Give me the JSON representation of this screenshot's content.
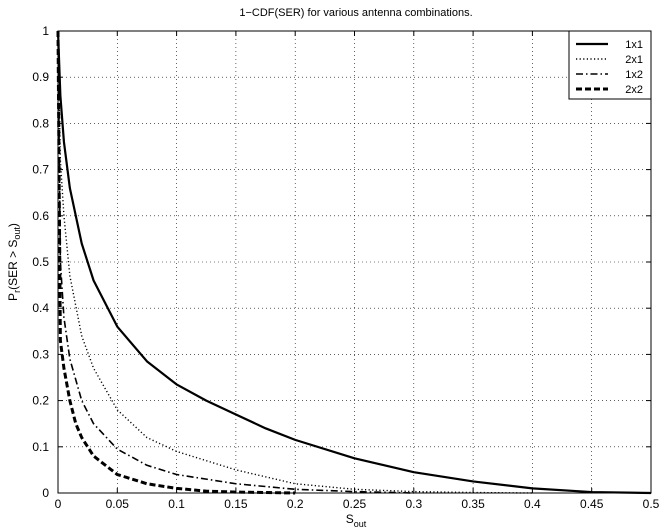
{
  "chart_data": {
    "type": "line",
    "title": "1−CDF(SER) for various antenna combinations.",
    "xlabel_main": "S",
    "xlabel_sub": "out",
    "ylabel_pre": "P",
    "ylabel_r": "r",
    "ylabel_mid": "(SER > S",
    "ylabel_sub": "out",
    "ylabel_post": ")",
    "xlim": [
      0,
      0.5
    ],
    "ylim": [
      0,
      1
    ],
    "xticks": [
      0,
      0.05,
      0.1,
      0.15,
      0.2,
      0.25,
      0.3,
      0.35,
      0.4,
      0.45,
      0.5
    ],
    "xtick_labels": [
      "0",
      "0.05",
      "0.1",
      "0.15",
      "0.2",
      "0.25",
      "0.3",
      "0.35",
      "0.4",
      "0.45",
      "0.5"
    ],
    "yticks": [
      0,
      0.1,
      0.2,
      0.3,
      0.4,
      0.5,
      0.6,
      0.7,
      0.8,
      0.9,
      1
    ],
    "ytick_labels": [
      "0",
      "0.1",
      "0.2",
      "0.3",
      "0.4",
      "0.5",
      "0.6",
      "0.7",
      "0.8",
      "0.9",
      "1"
    ],
    "grid": true,
    "legend_position": "top-right",
    "series": [
      {
        "name": "1x1",
        "style": "solid",
        "x": [
          0,
          0.002,
          0.005,
          0.01,
          0.02,
          0.03,
          0.05,
          0.075,
          0.1,
          0.125,
          0.15,
          0.175,
          0.2,
          0.25,
          0.3,
          0.35,
          0.4,
          0.45,
          0.5
        ],
        "y": [
          1.0,
          0.86,
          0.76,
          0.66,
          0.54,
          0.46,
          0.36,
          0.285,
          0.235,
          0.2,
          0.17,
          0.14,
          0.115,
          0.075,
          0.045,
          0.025,
          0.01,
          0.002,
          0.0
        ]
      },
      {
        "name": "2x1",
        "style": "dotted",
        "x": [
          0,
          0.002,
          0.005,
          0.01,
          0.02,
          0.03,
          0.05,
          0.075,
          0.1,
          0.125,
          0.15,
          0.175,
          0.2,
          0.25,
          0.3,
          0.35,
          0.4
        ],
        "y": [
          1.0,
          0.72,
          0.6,
          0.47,
          0.34,
          0.27,
          0.18,
          0.12,
          0.09,
          0.07,
          0.05,
          0.035,
          0.02,
          0.008,
          0.003,
          0.001,
          0.0
        ]
      },
      {
        "name": "1x2",
        "style": "dashdot",
        "x": [
          0,
          0.002,
          0.005,
          0.01,
          0.02,
          0.03,
          0.05,
          0.075,
          0.1,
          0.125,
          0.15,
          0.2,
          0.25,
          0.3
        ],
        "y": [
          1.0,
          0.5,
          0.38,
          0.29,
          0.2,
          0.15,
          0.095,
          0.06,
          0.04,
          0.03,
          0.02,
          0.008,
          0.003,
          0.0
        ]
      },
      {
        "name": "2x2",
        "style": "dashed",
        "x": [
          0,
          0.002,
          0.005,
          0.01,
          0.015,
          0.02,
          0.03,
          0.05,
          0.075,
          0.1,
          0.125,
          0.15,
          0.2
        ],
        "y": [
          1.0,
          0.33,
          0.27,
          0.2,
          0.15,
          0.12,
          0.08,
          0.04,
          0.02,
          0.01,
          0.004,
          0.002,
          0.0
        ]
      }
    ]
  }
}
